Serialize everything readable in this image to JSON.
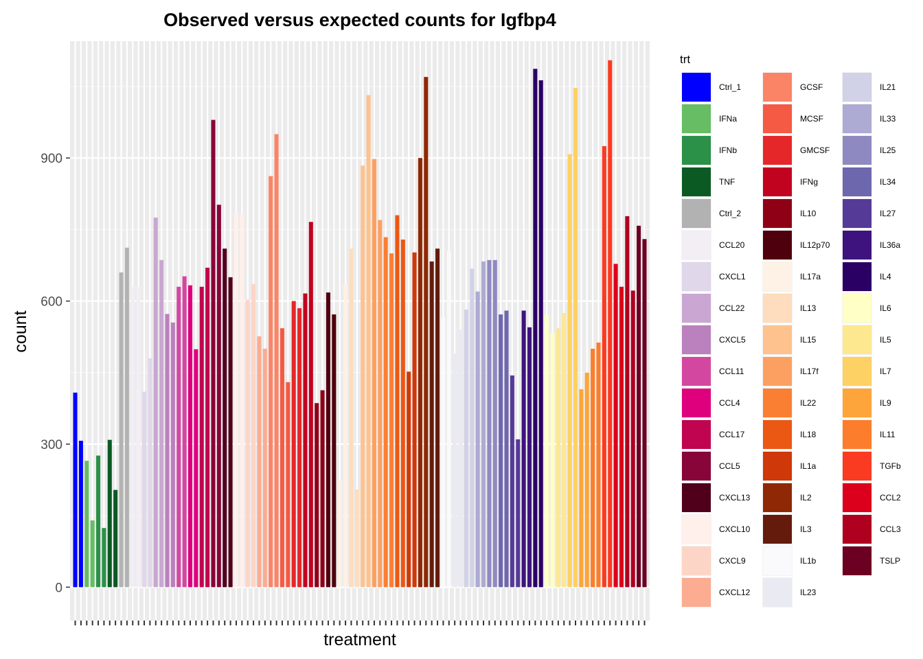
{
  "chart_data": {
    "type": "bar",
    "title": "Observed versus expected counts for Igfbp4",
    "xlabel": "treatment",
    "ylabel": "count",
    "ylim": [
      -70,
      1145
    ],
    "yticks": [
      0,
      300,
      600,
      900
    ],
    "grid": true,
    "legend": {
      "title": "trt",
      "position": "right",
      "columns": 3,
      "entries": [
        {
          "name": "Ctrl_1",
          "color": "#0000FF"
        },
        {
          "name": "IFNa",
          "color": "#66BD63"
        },
        {
          "name": "IFNb",
          "color": "#2B9048"
        },
        {
          "name": "TNF",
          "color": "#0B5A24"
        },
        {
          "name": "Ctrl_2",
          "color": "#B2B2B2"
        },
        {
          "name": "CCL20",
          "color": "#F2EEF4"
        },
        {
          "name": "CXCL1",
          "color": "#E0D7EA"
        },
        {
          "name": "CCL22",
          "color": "#C9A7D2"
        },
        {
          "name": "CXCL5",
          "color": "#BB80BE"
        },
        {
          "name": "CCL11",
          "color": "#D447A0"
        },
        {
          "name": "CCL4",
          "color": "#DE007D"
        },
        {
          "name": "CCL17",
          "color": "#C00450"
        },
        {
          "name": "CCL5",
          "color": "#880539"
        },
        {
          "name": "CXCL13",
          "color": "#50001B"
        },
        {
          "name": "CXCL10",
          "color": "#FFF0EC"
        },
        {
          "name": "CXCL9",
          "color": "#FDD5C7"
        },
        {
          "name": "CXCL12",
          "color": "#FBAC91"
        },
        {
          "name": "GCSF",
          "color": "#FB8467"
        },
        {
          "name": "MCSF",
          "color": "#F45A44"
        },
        {
          "name": "GMCSF",
          "color": "#E5272A"
        },
        {
          "name": "IFNg",
          "color": "#C10320"
        },
        {
          "name": "IL10",
          "color": "#8F0016"
        },
        {
          "name": "IL12p70",
          "color": "#4F000D"
        },
        {
          "name": "IL17a",
          "color": "#FEF1E5"
        },
        {
          "name": "IL13",
          "color": "#FDDDBE"
        },
        {
          "name": "IL15",
          "color": "#FDC28E"
        },
        {
          "name": "IL17f",
          "color": "#FCA061"
        },
        {
          "name": "IL22",
          "color": "#FB7F32"
        },
        {
          "name": "IL18",
          "color": "#EB5814"
        },
        {
          "name": "IL1a",
          "color": "#CF3808"
        },
        {
          "name": "IL2",
          "color": "#8E2805"
        },
        {
          "name": "IL3",
          "color": "#651B0B"
        },
        {
          "name": "IL1b",
          "color": "#FAFAFD"
        },
        {
          "name": "IL23",
          "color": "#EAEAF3"
        },
        {
          "name": "IL21",
          "color": "#D1D1E7"
        },
        {
          "name": "IL33",
          "color": "#ADABD3"
        },
        {
          "name": "IL25",
          "color": "#8F89C1"
        },
        {
          "name": "IL34",
          "color": "#6D67AE"
        },
        {
          "name": "IL27",
          "color": "#563A98"
        },
        {
          "name": "IL36a",
          "color": "#3E137E"
        },
        {
          "name": "IL4",
          "color": "#2A0065"
        },
        {
          "name": "IL6",
          "color": "#FFFFC6"
        },
        {
          "name": "IL5",
          "color": "#FEE88F"
        },
        {
          "name": "IL7",
          "color": "#FED164"
        },
        {
          "name": "IL9",
          "color": "#FDA53A"
        },
        {
          "name": "IL11",
          "color": "#FC7D2B"
        },
        {
          "name": "TGFb",
          "color": "#FB3A22"
        },
        {
          "name": "CCL2",
          "color": "#DC001C"
        },
        {
          "name": "CCL3",
          "color": "#AF001F"
        },
        {
          "name": "TSLP",
          "color": "#6C0022"
        }
      ]
    },
    "series": [
      {
        "trt": "Ctrl_1",
        "values": [
          408,
          307
        ]
      },
      {
        "trt": "IFNa",
        "values": [
          265,
          140
        ]
      },
      {
        "trt": "IFNb",
        "values": [
          276,
          124
        ]
      },
      {
        "trt": "TNF",
        "values": [
          309,
          204
        ]
      },
      {
        "trt": "Ctrl_2",
        "values": [
          660,
          712
        ]
      },
      {
        "trt": "CCL20",
        "values": [
          630,
          630
        ]
      },
      {
        "trt": "CXCL1",
        "values": [
          410,
          480
        ]
      },
      {
        "trt": "CCL22",
        "values": [
          775,
          686
        ]
      },
      {
        "trt": "CXCL5",
        "values": [
          573,
          555
        ]
      },
      {
        "trt": "CCL11",
        "values": [
          630,
          652
        ]
      },
      {
        "trt": "CCL4",
        "values": [
          633,
          499
        ]
      },
      {
        "trt": "CCL17",
        "values": [
          630,
          670
        ]
      },
      {
        "trt": "CCL5",
        "values": [
          980,
          802
        ]
      },
      {
        "trt": "CXCL13",
        "values": [
          710,
          650
        ]
      },
      {
        "trt": "CXCL10",
        "values": [
          785,
          782
        ]
      },
      {
        "trt": "CXCL9",
        "values": [
          603,
          636
        ]
      },
      {
        "trt": "CXCL12",
        "values": [
          526,
          500
        ]
      },
      {
        "trt": "GCSF",
        "values": [
          862,
          950
        ]
      },
      {
        "trt": "MCSF",
        "values": [
          543,
          430
        ]
      },
      {
        "trt": "GMCSF",
        "values": [
          600,
          585
        ]
      },
      {
        "trt": "IFNg",
        "values": [
          616,
          766
        ]
      },
      {
        "trt": "IL10",
        "values": [
          386,
          413
        ]
      },
      {
        "trt": "IL12p70",
        "values": [
          618,
          572
        ]
      },
      {
        "trt": "IL17a",
        "values": [
          223,
          636
        ]
      },
      {
        "trt": "IL13",
        "values": [
          710,
          205
        ]
      },
      {
        "trt": "IL15",
        "values": [
          884,
          1032
        ]
      },
      {
        "trt": "IL17f",
        "values": [
          898,
          770
        ]
      },
      {
        "trt": "IL22",
        "values": [
          734,
          700
        ]
      },
      {
        "trt": "IL18",
        "values": [
          780,
          729
        ]
      },
      {
        "trt": "IL1a",
        "values": [
          452,
          702
        ]
      },
      {
        "trt": "IL2",
        "values": [
          900,
          1070
        ]
      },
      {
        "trt": "IL3",
        "values": [
          683,
          710
        ]
      },
      {
        "trt": "IL1b",
        "values": [
          565,
          705
        ]
      },
      {
        "trt": "IL23",
        "values": [
          490,
          540
        ]
      },
      {
        "trt": "IL21",
        "values": [
          582,
          668
        ]
      },
      {
        "trt": "IL33",
        "values": [
          620,
          683
        ]
      },
      {
        "trt": "IL25",
        "values": [
          686,
          686
        ]
      },
      {
        "trt": "IL34",
        "values": [
          572,
          580
        ]
      },
      {
        "trt": "IL27",
        "values": [
          444,
          310
        ]
      },
      {
        "trt": "IL36a",
        "values": [
          580,
          545
        ]
      },
      {
        "trt": "IL4",
        "values": [
          1087,
          1063
        ]
      },
      {
        "trt": "IL6",
        "values": [
          570,
          533
        ]
      },
      {
        "trt": "IL5",
        "values": [
          543,
          575
        ]
      },
      {
        "trt": "IL7",
        "values": [
          908,
          1047
        ]
      },
      {
        "trt": "IL9",
        "values": [
          415,
          450
        ]
      },
      {
        "trt": "IL11",
        "values": [
          500,
          513
        ]
      },
      {
        "trt": "TGFb",
        "values": [
          925,
          1105
        ]
      },
      {
        "trt": "CCL2",
        "values": [
          678,
          630
        ]
      },
      {
        "trt": "CCL3",
        "values": [
          778,
          622
        ]
      },
      {
        "trt": "TSLP",
        "values": [
          758,
          730
        ]
      }
    ]
  }
}
